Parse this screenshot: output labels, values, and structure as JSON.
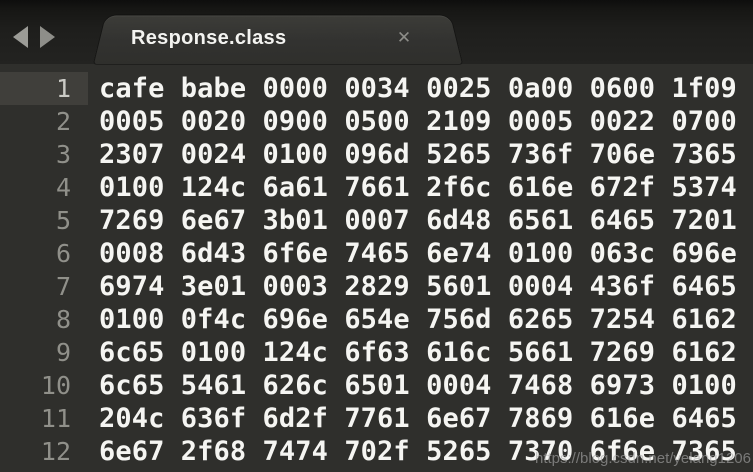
{
  "tab_bar": {
    "back_icon": "left-triangle",
    "forward_icon": "right-triangle"
  },
  "tab": {
    "title": "Response.class",
    "close_icon": "✕"
  },
  "editor": {
    "active_line": 1,
    "lines": [
      {
        "number": "1",
        "hex": "cafe babe 0000 0034 0025 0a00 0600 1f09",
        "active": true
      },
      {
        "number": "2",
        "hex": "0005 0020 0900 0500 2109 0005 0022 0700"
      },
      {
        "number": "3",
        "hex": "2307 0024 0100 096d 5265 736f 706e 7365"
      },
      {
        "number": "4",
        "hex": "0100 124c 6a61 7661 2f6c 616e 672f 5374"
      },
      {
        "number": "5",
        "hex": "7269 6e67 3b01 0007 6d48 6561 6465 7201"
      },
      {
        "number": "6",
        "hex": "0008 6d43 6f6e 7465 6e74 0100 063c 696e"
      },
      {
        "number": "7",
        "hex": "6974 3e01 0003 2829 5601 0004 436f 6465"
      },
      {
        "number": "8",
        "hex": "0100 0f4c 696e 654e 756d 6265 7254 6162"
      },
      {
        "number": "9",
        "hex": "6c65 0100 124c 6f63 616c 5661 7269 6162"
      },
      {
        "number": "10",
        "hex": "6c65 5461 626c 6501 0004 7468 6973 0100"
      },
      {
        "number": "11",
        "hex": "204c 636f 6d2f 7761 6e67 7869 616e 6465"
      },
      {
        "number": "12",
        "hex": "6e67 2f68 7474 702f 5265 7370 6f6e 7365"
      }
    ]
  },
  "watermark": {
    "text": "https://blog.csdn.net/yelang1206"
  },
  "colors": {
    "editor_bg": "#2f2f2c",
    "tabbar_bg": "#1d1d1b",
    "tab_bg": "#34342f",
    "text": "#f5f5f2",
    "line_number": "#90908a",
    "active_gutter_bg": "#403f3b",
    "active_line_number": "#cacac5",
    "watermark": "#aaaaaa"
  }
}
